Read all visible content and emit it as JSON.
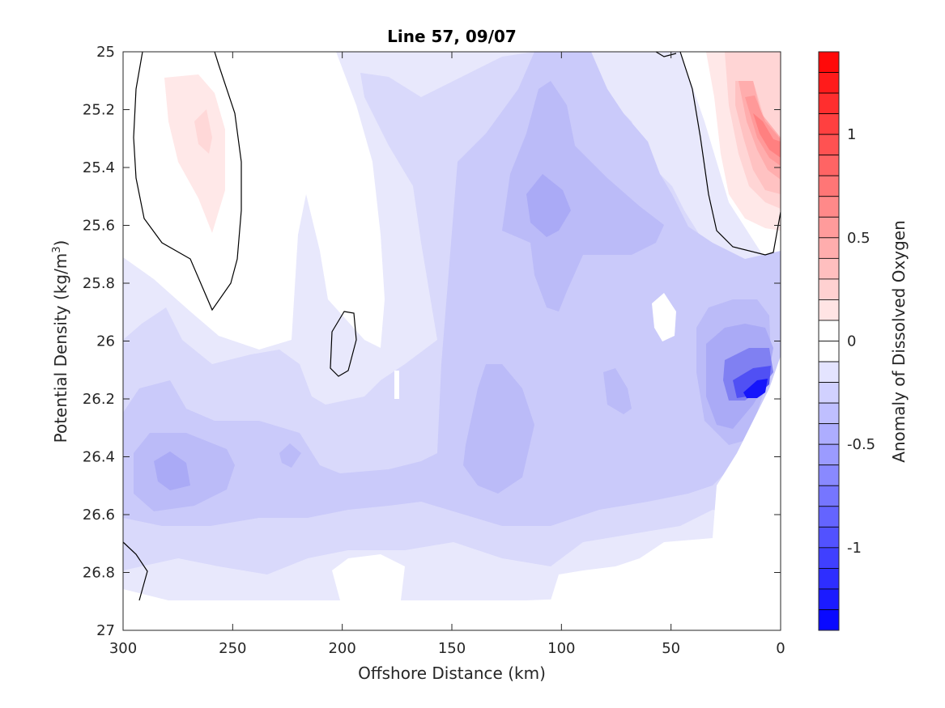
{
  "chart_data": {
    "type": "heatmap",
    "subtype": "filled-contour",
    "title": "Line 57, 09/07",
    "xlabel": "Offshore Distance (km)",
    "ylabel_main": "Potential Density (kg/m",
    "ylabel_sup": "3",
    "ylabel_close": ")",
    "colorbar_label": "Anomaly of Dissolved Oxygen",
    "xlim": [
      300,
      0
    ],
    "x_reversed": true,
    "ylim": [
      25,
      27
    ],
    "y_reversed": true,
    "x_ticks": [
      300,
      250,
      200,
      150,
      100,
      50,
      0
    ],
    "x_tick_labels": [
      "300",
      "250",
      "200",
      "150",
      "100",
      "50",
      "0"
    ],
    "y_ticks": [
      25,
      25.2,
      25.4,
      25.6,
      25.8,
      26,
      26.2,
      26.4,
      26.6,
      26.8,
      27
    ],
    "y_tick_labels": [
      "25",
      "25.2",
      "25.4",
      "25.6",
      "25.8",
      "26",
      "26.2",
      "26.4",
      "26.6",
      "26.8",
      "27"
    ],
    "colorbar_range": [
      -1.4,
      1.4
    ],
    "colorbar_step": 0.1,
    "colorbar_ticks": [
      1,
      0.5,
      0,
      -0.5,
      -1
    ],
    "colorbar_tick_labels": [
      "1",
      "0.5",
      "0",
      "-0.5",
      "-1"
    ],
    "colormap": "blue-white-red diverging",
    "colors": {
      "min": "#0000ff",
      "zero": "#ffffff",
      "max": "#ff0000",
      "contour_line": "#000000"
    },
    "grid": false
  }
}
